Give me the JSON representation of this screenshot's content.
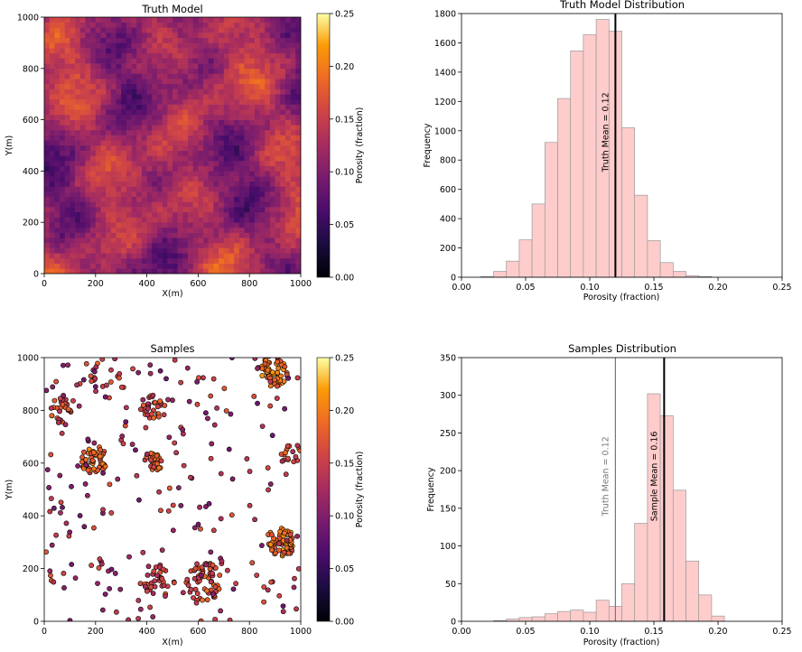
{
  "colors": {
    "bar_fill": "#ffcccc",
    "bar_edge": "#999999",
    "line": "#000000",
    "truth_line_light": "#777777",
    "cmap_low": "#000004",
    "cmap_high": "#fcffa4"
  },
  "chart_data": [
    {
      "type": "heatmap",
      "title": "Truth Model",
      "xlabel": "X(m)",
      "ylabel": "Y(m)",
      "xlim": [
        0,
        1000
      ],
      "ylim": [
        0,
        1000
      ],
      "xticks": [
        "0",
        "200",
        "400",
        "600",
        "800",
        "1000"
      ],
      "yticks": [
        "0",
        "200",
        "400",
        "600",
        "800",
        "1000"
      ],
      "colorbar": {
        "label": "Porosity (fraction)",
        "range": [
          0.0,
          0.25
        ],
        "ticks": [
          "0.00",
          "0.05",
          "0.10",
          "0.15",
          "0.20",
          "0.25"
        ],
        "colormap": "inferno"
      },
      "grid": "100x100 cells, approximate random porosity field"
    },
    {
      "type": "bar",
      "title": "Truth Model Distribution",
      "xlabel": "Porosity (fraction)",
      "ylabel": "Frequency",
      "xlim": [
        0.0,
        0.25
      ],
      "ylim": [
        0,
        1800
      ],
      "xticks": [
        "0.00",
        "0.05",
        "0.10",
        "0.15",
        "0.20",
        "0.25"
      ],
      "yticks": [
        "0",
        "200",
        "400",
        "600",
        "800",
        "1000",
        "1200",
        "1400",
        "1600",
        "1800"
      ],
      "bin_width": 0.01,
      "bin_starts": [
        0.015,
        0.025,
        0.035,
        0.045,
        0.055,
        0.065,
        0.075,
        0.085,
        0.095,
        0.105,
        0.115,
        0.125,
        0.135,
        0.145,
        0.155,
        0.165,
        0.175,
        0.185,
        0.195,
        0.205
      ],
      "values": [
        5,
        40,
        110,
        255,
        500,
        920,
        1220,
        1545,
        1655,
        1760,
        1680,
        1020,
        560,
        250,
        100,
        40,
        10,
        5,
        0,
        0
      ],
      "mean_lines": [
        {
          "x": 0.12,
          "label": "Truth Mean = 0.12",
          "style": "dark"
        }
      ]
    },
    {
      "type": "scatter",
      "title": "Samples",
      "xlabel": "X(m)",
      "ylabel": "Y(m)",
      "xlim": [
        0,
        1000
      ],
      "ylim": [
        0,
        1000
      ],
      "xticks": [
        "0",
        "200",
        "400",
        "600",
        "800",
        "1000"
      ],
      "yticks": [
        "0",
        "200",
        "400",
        "600",
        "800",
        "1000"
      ],
      "colorbar": {
        "label": "Porosity (fraction)",
        "range": [
          0.0,
          0.25
        ],
        "ticks": [
          "0.00",
          "0.05",
          "0.10",
          "0.15",
          "0.20",
          "0.25"
        ],
        "colormap": "inferno"
      },
      "clusters": [
        {
          "x": 895,
          "y": 950,
          "r": 55,
          "n": 60,
          "mean": 0.19
        },
        {
          "x": 920,
          "y": 300,
          "r": 55,
          "n": 65,
          "mean": 0.19
        },
        {
          "x": 195,
          "y": 610,
          "r": 50,
          "n": 45,
          "mean": 0.18
        },
        {
          "x": 425,
          "y": 600,
          "r": 35,
          "n": 30,
          "mean": 0.18
        },
        {
          "x": 620,
          "y": 150,
          "r": 70,
          "n": 60,
          "mean": 0.17
        },
        {
          "x": 430,
          "y": 810,
          "r": 45,
          "n": 30,
          "mean": 0.16
        },
        {
          "x": 70,
          "y": 800,
          "r": 45,
          "n": 25,
          "mean": 0.16
        },
        {
          "x": 450,
          "y": 150,
          "r": 60,
          "n": 30,
          "mean": 0.15
        },
        {
          "x": 960,
          "y": 640,
          "r": 40,
          "n": 15,
          "mean": 0.16
        },
        {
          "x": 250,
          "y": 930,
          "r": 80,
          "n": 20,
          "mean": 0.16
        }
      ],
      "scattered_points": 220
    },
    {
      "type": "bar",
      "title": "Samples Distribution",
      "xlabel": "Porosity (fraction)",
      "ylabel": "Frequency",
      "xlim": [
        0.0,
        0.25
      ],
      "ylim": [
        0,
        350
      ],
      "xticks": [
        "0.00",
        "0.05",
        "0.10",
        "0.15",
        "0.20",
        "0.25"
      ],
      "yticks": [
        "0",
        "50",
        "100",
        "150",
        "200",
        "250",
        "300",
        "350"
      ],
      "bin_width": 0.01,
      "bin_starts": [
        0.025,
        0.035,
        0.045,
        0.055,
        0.065,
        0.075,
        0.085,
        0.095,
        0.105,
        0.115,
        0.125,
        0.135,
        0.145,
        0.155,
        0.165,
        0.175,
        0.185,
        0.195,
        0.205,
        0.215
      ],
      "values": [
        1,
        3,
        5,
        6,
        10,
        13,
        15,
        12,
        28,
        20,
        50,
        130,
        302,
        273,
        174,
        80,
        35,
        7,
        0,
        0
      ],
      "mean_lines": [
        {
          "x": 0.12,
          "label": "Truth Mean = 0.12",
          "style": "light"
        },
        {
          "x": 0.158,
          "label": "Sample Mean = 0.16",
          "style": "dark"
        }
      ]
    }
  ]
}
